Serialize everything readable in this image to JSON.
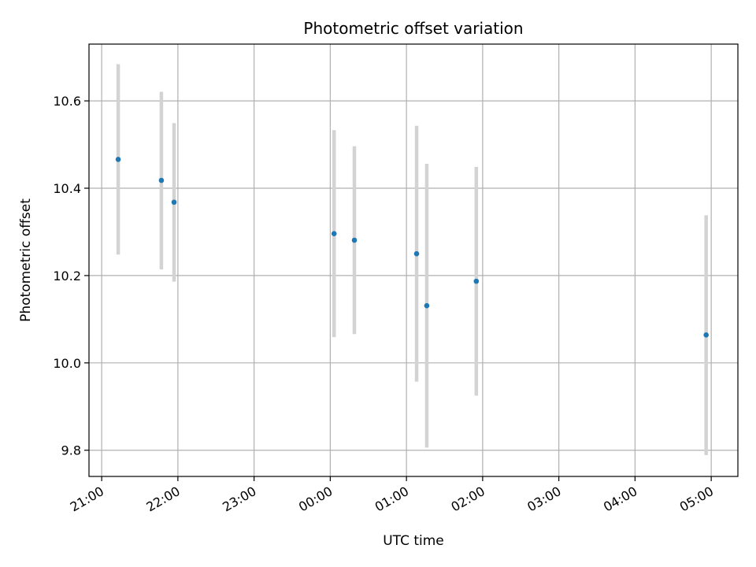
{
  "chart_data": {
    "type": "scatter",
    "title": "Photometric offset variation",
    "xlabel": "UTC time",
    "ylabel": "Photometric offset",
    "grid": true,
    "x_axis": "time",
    "x_tick_labels": [
      "21:00",
      "22:00",
      "23:00",
      "00:00",
      "01:00",
      "02:00",
      "03:00",
      "04:00",
      "05:00"
    ],
    "y_ticks": [
      9.8,
      10.0,
      10.2,
      10.4,
      10.6
    ],
    "y_tick_labels": [
      "9.8",
      "10.0",
      "10.2",
      "10.4",
      "10.6"
    ],
    "ylim": [
      9.74,
      10.73
    ],
    "xlim": [
      "20:50",
      "05:21"
    ],
    "series": [
      {
        "marker_color": "#1f77b4",
        "errorbar_color": "#d3d3d3",
        "points": [
          {
            "x": "21:13",
            "y": 10.466,
            "y_low": 10.248,
            "y_high": 10.684
          },
          {
            "x": "21:47",
            "y": 10.418,
            "y_low": 10.214,
            "y_high": 10.621
          },
          {
            "x": "21:57",
            "y": 10.368,
            "y_low": 10.186,
            "y_high": 10.549
          },
          {
            "x": "00:03",
            "y": 10.296,
            "y_low": 10.059,
            "y_high": 10.533
          },
          {
            "x": "00:19",
            "y": 10.281,
            "y_low": 10.066,
            "y_high": 10.496
          },
          {
            "x": "01:08",
            "y": 10.25,
            "y_low": 9.957,
            "y_high": 10.543
          },
          {
            "x": "01:16",
            "y": 10.131,
            "y_low": 9.806,
            "y_high": 10.456
          },
          {
            "x": "01:55",
            "y": 10.187,
            "y_low": 9.925,
            "y_high": 10.449
          },
          {
            "x": "04:56",
            "y": 10.064,
            "y_low": 9.789,
            "y_high": 10.338
          }
        ]
      }
    ]
  }
}
